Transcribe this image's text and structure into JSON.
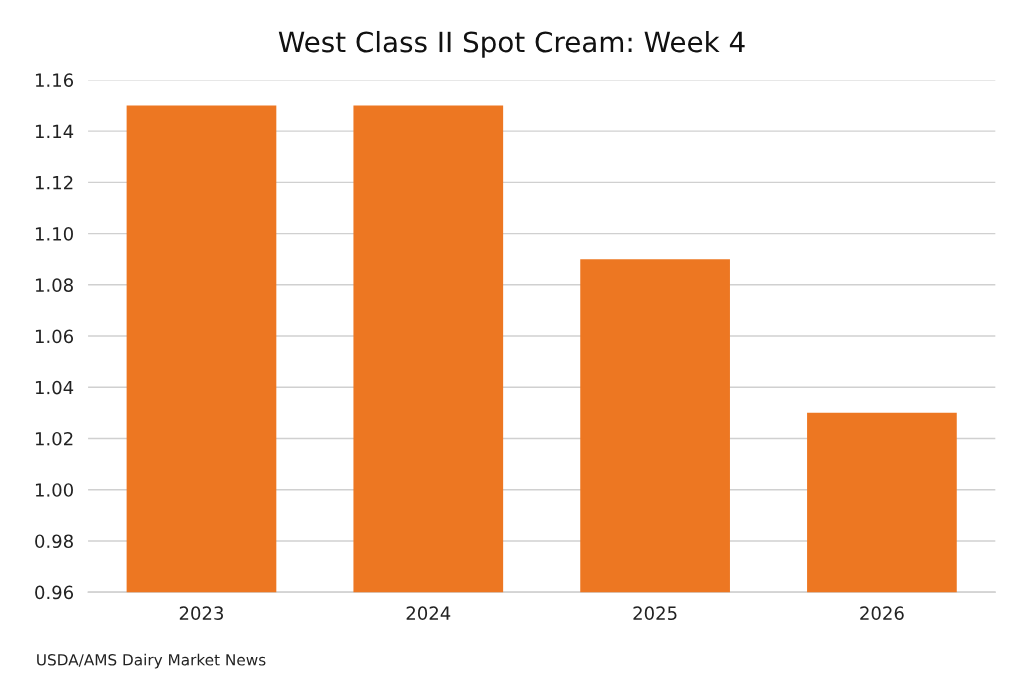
{
  "chart_data": {
    "type": "bar",
    "title": "West Class II Spot Cream: Week 4",
    "categories": [
      "2023",
      "2024",
      "2025",
      "2026"
    ],
    "values": [
      1.15,
      1.15,
      1.09,
      1.03
    ],
    "color": "#ed7722",
    "ylim": [
      0.96,
      1.16
    ],
    "yticks": [
      {
        "value": 0.96,
        "label": "0.96"
      },
      {
        "value": 0.98,
        "label": "0.98"
      },
      {
        "value": 1.0,
        "label": "1.00"
      },
      {
        "value": 1.02,
        "label": "1.02"
      },
      {
        "value": 1.04,
        "label": "1.04"
      },
      {
        "value": 1.06,
        "label": "1.06"
      },
      {
        "value": 1.08,
        "label": "1.08"
      },
      {
        "value": 1.1,
        "label": "1.10"
      },
      {
        "value": 1.12,
        "label": "1.12"
      },
      {
        "value": 1.14,
        "label": "1.14"
      },
      {
        "value": 1.16,
        "label": "1.16"
      }
    ],
    "grid": "y",
    "annotations": [
      "USDA/AMS Dairy Market News"
    ]
  }
}
